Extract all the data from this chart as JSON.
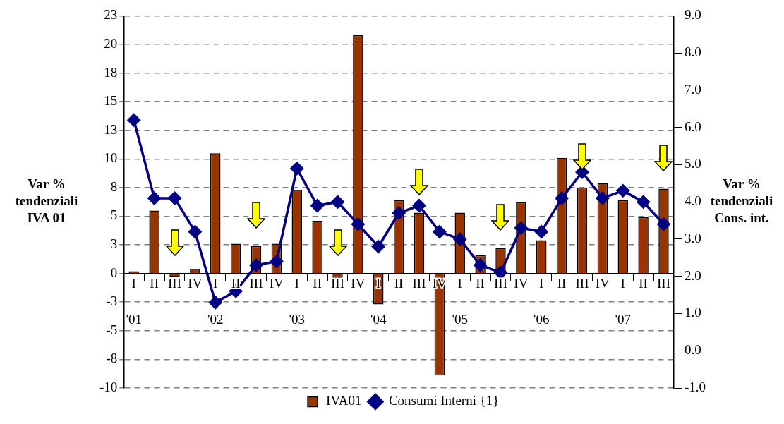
{
  "chart_data": {
    "type": "bar",
    "categories": [
      "I\n'01",
      "II",
      "III",
      "IV",
      "I\n'02",
      "II",
      "III",
      "IV",
      "I\n'03",
      "II",
      "III",
      "IV",
      "I\n'04",
      "II",
      "III",
      "IV",
      "I\n'05",
      "II",
      "III",
      "IV",
      "I\n'06",
      "II",
      "III",
      "IV",
      "I\n'07",
      "II",
      "III"
    ],
    "series": [
      {
        "name": "IVA01",
        "color": "#993300",
        "values": [
          0.2,
          5.5,
          -0.3,
          0.4,
          10.5,
          2.6,
          2.4,
          2.6,
          7.3,
          4.6,
          -0.4,
          20.8,
          -2.7,
          6.4,
          5.3,
          -8.9,
          5.3,
          1.6,
          2.2,
          6.2,
          2.9,
          10.1,
          7.5,
          7.9,
          6.4,
          4.9,
          7.4
        ]
      },
      {
        "name": "Consumi Interni {1}",
        "type": "line",
        "axis": "y2",
        "color": "#000080",
        "marker": "diamond",
        "values": [
          6.2,
          4.1,
          4.1,
          3.2,
          1.3,
          1.6,
          2.3,
          2.4,
          4.9,
          3.9,
          4.0,
          3.4,
          2.8,
          3.7,
          3.9,
          3.2,
          3.0,
          2.3,
          2.1,
          3.3,
          3.2,
          4.1,
          4.8,
          4.1,
          4.3,
          4.0,
          3.4
        ]
      }
    ],
    "ylabel": "Var %\ntendenziali\nIVA 01",
    "y2label": "Var %\ntendenziali\nCons. int.",
    "ylim": [
      -10,
      22.5
    ],
    "yticks": [
      {
        "value": -10,
        "label": "-10"
      },
      {
        "value": -7.5,
        "label": "-8"
      },
      {
        "value": -5,
        "label": "-5"
      },
      {
        "value": -2.5,
        "label": "-3"
      },
      {
        "value": 0,
        "label": "0"
      },
      {
        "value": 2.5,
        "label": "3"
      },
      {
        "value": 5,
        "label": "5"
      },
      {
        "value": 7.5,
        "label": "8"
      },
      {
        "value": 10,
        "label": "10"
      },
      {
        "value": 12.5,
        "label": "13"
      },
      {
        "value": 15,
        "label": "15"
      },
      {
        "value": 17.5,
        "label": "18"
      },
      {
        "value": 20,
        "label": "20"
      },
      {
        "value": 22.5,
        "label": "23"
      }
    ],
    "y2lim": [
      -1,
      9
    ],
    "y2ticks": [
      {
        "value": -1,
        "label": "-1.0"
      },
      {
        "value": 0,
        "label": "0.0"
      },
      {
        "value": 1,
        "label": "1.0"
      },
      {
        "value": 2,
        "label": "2.0"
      },
      {
        "value": 3,
        "label": "3.0"
      },
      {
        "value": 4,
        "label": "4.0"
      },
      {
        "value": 5,
        "label": "5.0"
      },
      {
        "value": 6,
        "label": "6.0"
      },
      {
        "value": 7,
        "label": "7.0"
      },
      {
        "value": 8,
        "label": "8.0"
      },
      {
        "value": 9,
        "label": "9.0"
      }
    ],
    "grid": "y",
    "legend": "bottom"
  }
}
